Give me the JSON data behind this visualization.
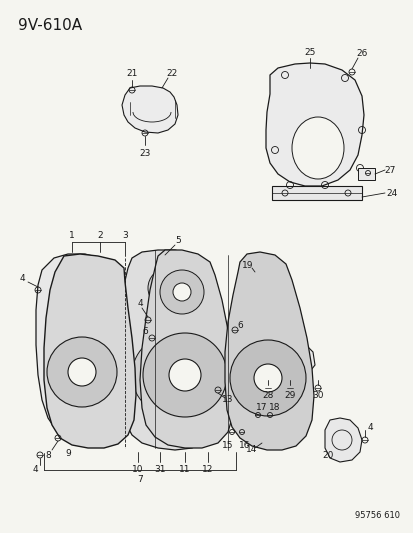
{
  "title": "9V-610A",
  "footer": "95756 610",
  "bg_color": "#f5f5f0",
  "line_color": "#1a1a1a",
  "title_fontsize": 11,
  "label_fontsize": 6.5,
  "footer_fontsize": 6
}
